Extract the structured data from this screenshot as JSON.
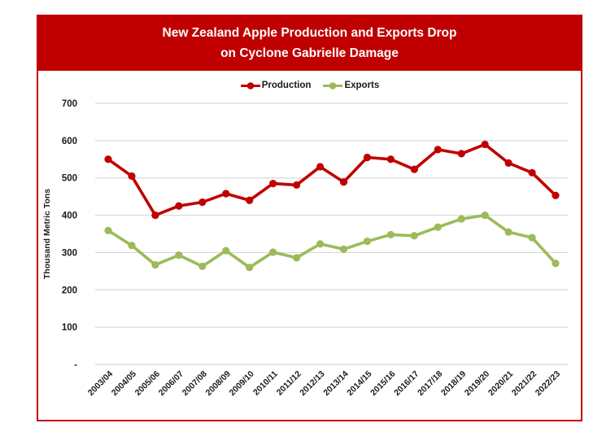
{
  "title": {
    "line1": "New Zealand Apple Production and Exports Drop",
    "line2": "on Cyclone Gabrielle Damage"
  },
  "colors": {
    "banner": "#C00000",
    "frame_border": "#C00000",
    "production": "#C00000",
    "exports": "#9BBB59",
    "gridline": "#D9D9D9",
    "text": "#1a1a1a",
    "title_text": "#ffffff"
  },
  "legend": {
    "items": [
      {
        "label": "Production",
        "color": "#C00000"
      },
      {
        "label": "Exports",
        "color": "#9BBB59"
      }
    ]
  },
  "chart_data": {
    "type": "line",
    "title": "New Zealand Apple Production and Exports Drop on Cyclone Gabrielle Damage",
    "xlabel": "",
    "ylabel": "Thousand Metric Tons",
    "ylim": [
      0,
      700
    ],
    "ytick_interval": 100,
    "ytick_labels": [
      "-",
      "100",
      "200",
      "300",
      "400",
      "500",
      "600",
      "700"
    ],
    "grid": "horizontal",
    "legend_position": "top-center",
    "categories": [
      "2003/04",
      "2004/05",
      "2005/06",
      "2006/07",
      "2007/08",
      "2008/09",
      "2009/10",
      "2010/11",
      "2011/12",
      "2012/13",
      "2013/14",
      "2014/15",
      "2015/16",
      "2016/17",
      "2017/18",
      "2018/19",
      "2019/20",
      "2020/21",
      "2021/22",
      "2022/23"
    ],
    "series": [
      {
        "name": "Production",
        "color": "#C00000",
        "values": [
          550,
          505,
          400,
          425,
          435,
          458,
          440,
          485,
          481,
          530,
          489,
          555,
          550,
          523,
          576,
          565,
          590,
          540,
          514,
          453
        ]
      },
      {
        "name": "Exports",
        "color": "#9BBB59",
        "values": [
          359,
          319,
          267,
          293,
          263,
          305,
          260,
          301,
          286,
          323,
          309,
          330,
          348,
          345,
          368,
          390,
          400,
          355,
          340,
          271
        ]
      }
    ]
  }
}
